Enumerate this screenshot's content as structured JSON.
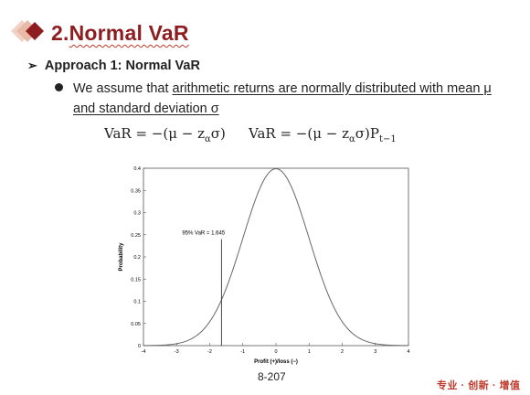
{
  "header": {
    "title_prefix": "2.",
    "title_main": "Normal VaR"
  },
  "approach": {
    "arrow": "➢",
    "label": "Approach 1: Normal VaR"
  },
  "bullet": {
    "text_plain": "We assume that ",
    "text_underlined_1": "arithmetic returns are normally distributed with mean μ",
    "text_underlined_2": "and standard deviation σ"
  },
  "formulas": {
    "f1": {
      "lhs": "VaR = −(μ − z",
      "sub": "α",
      "rhs": "σ)"
    },
    "f2": {
      "lhs": "VaR = −(μ − z",
      "sub": "α",
      "mid": "σ)P",
      "sub2": "t−1"
    }
  },
  "chart_data": {
    "type": "line",
    "xlabel": "Profit (+)/loss (−)",
    "ylabel": "Probability",
    "xlim": [
      -4,
      4
    ],
    "ylim": [
      0,
      0.4
    ],
    "xticks": [
      "-4",
      "-3",
      "-2",
      "-1",
      "0",
      "1",
      "2",
      "3",
      "4"
    ],
    "yticks": [
      "0",
      "0.05",
      "0.1",
      "0.15",
      "0.2",
      "0.25",
      "0.3",
      "0.35",
      "0.4"
    ],
    "series": [
      {
        "function": "standard normal pdf",
        "mean": 0,
        "sd": 1
      }
    ],
    "var_line": {
      "x": -1.645,
      "y_top": 0.24
    },
    "annotation": "95% VaR = 1.645"
  },
  "footer": {
    "page": "8-207",
    "slogan": "专业 · 创新 · 增值"
  },
  "colors": {
    "title": "#8e1d1f",
    "accent": "#c0392b"
  }
}
